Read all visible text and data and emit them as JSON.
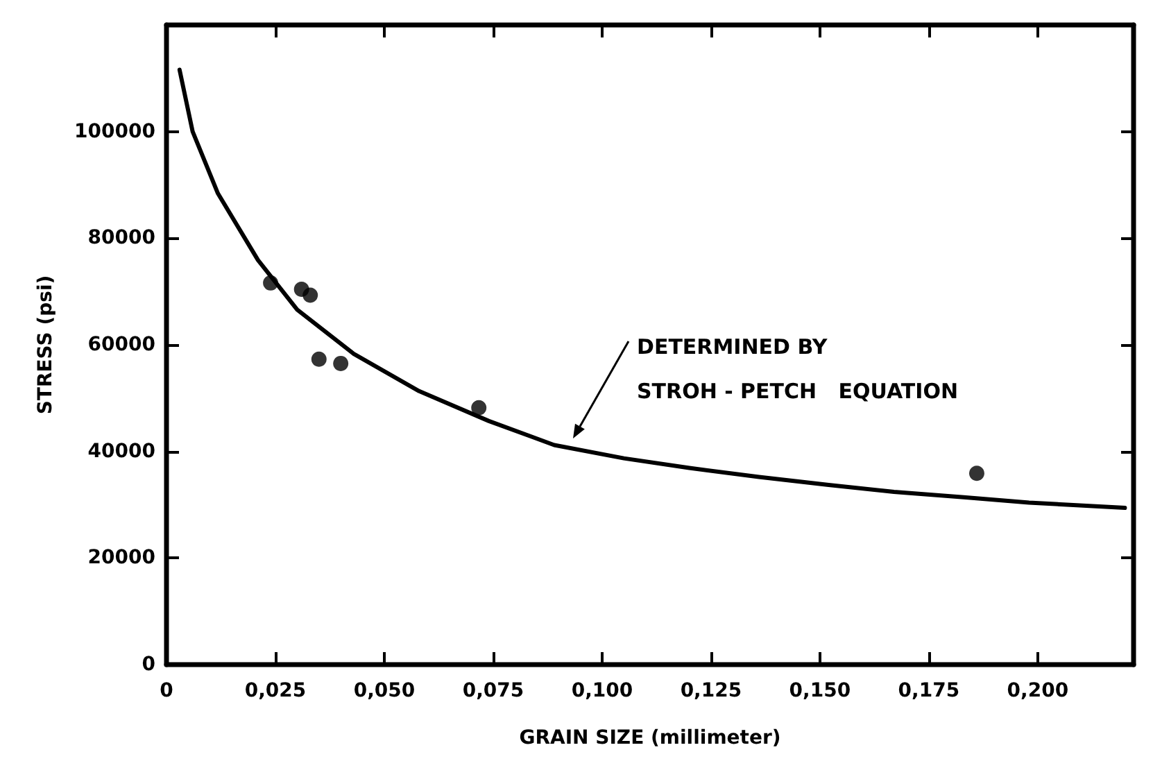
{
  "chart_data": {
    "type": "scatter",
    "xlabel": "GRAIN SIZE (millimeter)",
    "ylabel": "STRESS (psi)",
    "xlim": [
      0,
      0.222
    ],
    "ylim": [
      0,
      120000
    ],
    "xticks": [
      0,
      {
        "value": 0.025,
        "label": "0,025"
      },
      {
        "value": 0.05,
        "label": "0,050"
      },
      {
        "value": 0.075,
        "label": "0,075"
      },
      {
        "value": 0.1,
        "label": "0,100"
      },
      {
        "value": 0.125,
        "label": "0,125"
      },
      {
        "value": 0.15,
        "label": "0,150"
      },
      {
        "value": 0.175,
        "label": "0,175"
      },
      {
        "value": 0.2,
        "label": "0,200"
      }
    ],
    "yticks": [
      0,
      20000,
      40000,
      60000,
      80000,
      100000
    ],
    "grid": false,
    "series": [
      {
        "color": "#000000",
        "marker": "circle",
        "x": [
          0.0239,
          0.031,
          0.033,
          0.035,
          0.04,
          0.0717,
          0.186
        ],
        "values": [
          71600,
          70400,
          69300,
          57300,
          56500,
          48200,
          35900
        ]
      },
      {
        "type": "line",
        "color": "#000000",
        "marker": "none",
        "line_style": "solid",
        "x": [
          0.003,
          0.006,
          0.0118,
          0.021,
          0.03,
          0.043,
          0.058,
          0.074,
          0.089,
          0.105,
          0.12,
          0.136,
          0.152,
          0.167,
          0.183,
          0.198,
          0.22
        ],
        "values": [
          111600,
          100000,
          88400,
          75900,
          66600,
          58300,
          51300,
          45700,
          41200,
          38700,
          36900,
          35200,
          33700,
          32400,
          31400,
          30400,
          29400
        ]
      }
    ],
    "annotations": [
      "DETERMINED BY\nSTROH - PETCH   EQUATION"
    ]
  }
}
